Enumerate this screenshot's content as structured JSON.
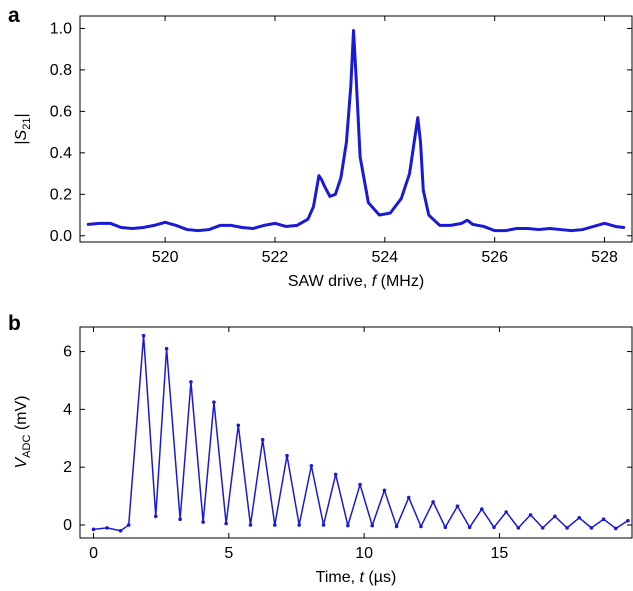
{
  "colors": {
    "line": "#1a1ad6",
    "axis": "#000000",
    "background": "#ffffff"
  },
  "chart_data": [
    {
      "panel_label": "a",
      "type": "line",
      "xlabel_prefix": "SAW drive, ",
      "xlabel_var": "f",
      "xlabel_suffix": " (MHz)",
      "ylabel_open": "|",
      "ylabel_var": "S",
      "ylabel_sub": "21",
      "ylabel_close": "|",
      "xlim": [
        518.45,
        528.5
      ],
      "ylim": [
        -0.03,
        1.06
      ],
      "xticks": [
        520,
        522,
        524,
        526,
        528
      ],
      "xtick_labels": [
        "520",
        "522",
        "524",
        "526",
        "528"
      ],
      "yticks": [
        0.0,
        0.2,
        0.4,
        0.6,
        0.8,
        1.0
      ],
      "ytick_labels": [
        "0.0",
        "0.2",
        "0.4",
        "0.6",
        "0.8",
        "1.0"
      ],
      "grid": false,
      "series": [
        {
          "x": [
            518.6,
            518.8,
            519.0,
            519.2,
            519.4,
            519.6,
            519.8,
            520.0,
            520.2,
            520.4,
            520.6,
            520.8,
            521.0,
            521.2,
            521.4,
            521.6,
            521.8,
            522.0,
            522.2,
            522.4,
            522.6,
            522.7,
            522.8,
            522.85,
            522.9,
            523.0,
            523.1,
            523.2,
            523.3,
            523.38,
            523.43,
            523.48,
            523.55,
            523.7,
            523.9,
            524.1,
            524.3,
            524.45,
            524.55,
            524.6,
            524.65,
            524.7,
            524.8,
            525.0,
            525.2,
            525.4,
            525.5,
            525.6,
            525.8,
            526.0,
            526.2,
            526.4,
            526.6,
            526.8,
            527.0,
            527.2,
            527.4,
            527.6,
            527.8,
            528.0,
            528.2,
            528.35
          ],
          "y": [
            0.055,
            0.06,
            0.06,
            0.04,
            0.035,
            0.04,
            0.05,
            0.065,
            0.05,
            0.03,
            0.025,
            0.03,
            0.05,
            0.05,
            0.04,
            0.035,
            0.05,
            0.06,
            0.045,
            0.05,
            0.08,
            0.14,
            0.29,
            0.27,
            0.24,
            0.19,
            0.2,
            0.28,
            0.45,
            0.72,
            0.99,
            0.75,
            0.38,
            0.16,
            0.1,
            0.11,
            0.18,
            0.3,
            0.48,
            0.57,
            0.45,
            0.22,
            0.1,
            0.05,
            0.05,
            0.06,
            0.075,
            0.055,
            0.045,
            0.025,
            0.025,
            0.035,
            0.035,
            0.03,
            0.035,
            0.03,
            0.025,
            0.03,
            0.045,
            0.06,
            0.045,
            0.04
          ]
        }
      ]
    },
    {
      "panel_label": "b",
      "type": "line",
      "xlabel_prefix": "Time, ",
      "xlabel_var": "t",
      "xlabel_suffix": " (µs)",
      "ylabel_var": "V",
      "ylabel_sub": "ADC",
      "ylabel_suffix": " (mV)",
      "xlim": [
        -0.5,
        19.9
      ],
      "ylim": [
        -0.45,
        6.85
      ],
      "xticks": [
        0,
        5,
        10,
        15
      ],
      "xtick_labels": [
        "0",
        "5",
        "10",
        "15"
      ],
      "yticks": [
        0,
        2,
        4,
        6
      ],
      "ytick_labels": [
        "0",
        "2",
        "4",
        "6"
      ],
      "grid": false,
      "markers": true,
      "series": [
        {
          "x": [
            0.0,
            0.5,
            1.0,
            1.3,
            1.85,
            2.3,
            2.7,
            3.2,
            3.6,
            4.05,
            4.45,
            4.9,
            5.35,
            5.8,
            6.25,
            6.7,
            7.15,
            7.6,
            8.05,
            8.5,
            8.95,
            9.4,
            9.85,
            10.3,
            10.75,
            11.2,
            11.65,
            12.1,
            12.55,
            13.0,
            13.45,
            13.9,
            14.35,
            14.8,
            15.25,
            15.7,
            16.15,
            16.6,
            17.05,
            17.5,
            17.95,
            18.4,
            18.85,
            19.3,
            19.75
          ],
          "y": [
            -0.15,
            -0.1,
            -0.2,
            0.0,
            6.55,
            0.3,
            6.1,
            0.2,
            4.95,
            0.1,
            4.25,
            0.05,
            3.45,
            0.0,
            2.95,
            0.0,
            2.4,
            0.0,
            2.05,
            0.0,
            1.75,
            -0.02,
            1.4,
            -0.02,
            1.2,
            -0.05,
            0.95,
            -0.05,
            0.8,
            -0.08,
            0.65,
            -0.08,
            0.55,
            -0.08,
            0.45,
            -0.1,
            0.35,
            -0.1,
            0.3,
            -0.1,
            0.25,
            -0.1,
            0.2,
            -0.12,
            0.15
          ]
        }
      ]
    }
  ]
}
